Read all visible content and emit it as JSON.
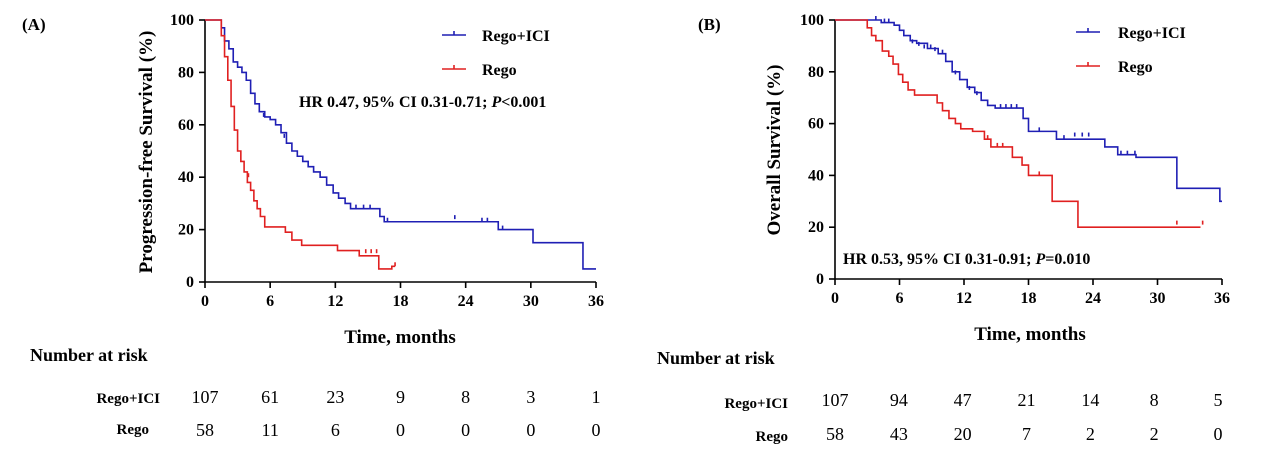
{
  "chart_data": [
    {
      "panel_label": "(A)",
      "type": "line",
      "subtype": "kaplan-meier",
      "ylabel": "Progression-free Survival (%)",
      "xlabel": "Time, months",
      "xlim": [
        0,
        36
      ],
      "ylim": [
        0,
        100
      ],
      "x_ticks": [
        "0",
        "6",
        "12",
        "18",
        "24",
        "30",
        "36"
      ],
      "y_ticks": [
        "0",
        "20",
        "40",
        "60",
        "80",
        "100"
      ],
      "annotation": {
        "prefix": "HR 0.47, 95%  CI 0.31-0.71; ",
        "p_label": "P",
        "p_value": "<0.001"
      },
      "legend": [
        "Rego+ICI",
        "Rego"
      ],
      "colors": {
        "Rego+ICI": "#1f1fb4",
        "Rego": "#e02020"
      },
      "series": [
        {
          "name": "Rego+ICI",
          "steps": [
            [
              0,
              100
            ],
            [
              1.3,
              100
            ],
            [
              1.5,
              97
            ],
            [
              1.8,
              92
            ],
            [
              2.2,
              89
            ],
            [
              2.6,
              84
            ],
            [
              3.0,
              82
            ],
            [
              3.4,
              80
            ],
            [
              3.8,
              77
            ],
            [
              4.2,
              72
            ],
            [
              4.6,
              68
            ],
            [
              5.0,
              65
            ],
            [
              5.5,
              63
            ],
            [
              6.0,
              62
            ],
            [
              6.5,
              60
            ],
            [
              7.0,
              57
            ],
            [
              7.5,
              53
            ],
            [
              8.0,
              50
            ],
            [
              8.5,
              48
            ],
            [
              9.0,
              46
            ],
            [
              9.5,
              44
            ],
            [
              10.0,
              42
            ],
            [
              10.6,
              40
            ],
            [
              11.2,
              37
            ],
            [
              11.8,
              34
            ],
            [
              12.3,
              32
            ],
            [
              12.9,
              30
            ],
            [
              13.4,
              28
            ],
            [
              15.5,
              28
            ],
            [
              16.1,
              25
            ],
            [
              16.5,
              23
            ],
            [
              26.5,
              23
            ],
            [
              27.0,
              20
            ],
            [
              28.0,
              20
            ],
            [
              30.2,
              15
            ],
            [
              34.4,
              15
            ],
            [
              34.8,
              5
            ],
            [
              36.0,
              5
            ]
          ],
          "censored": [
            [
              5.4,
              63
            ],
            [
              7.3,
              55
            ],
            [
              13.9,
              28
            ],
            [
              14.6,
              28
            ],
            [
              15.2,
              28
            ],
            [
              16.8,
              23
            ],
            [
              23.0,
              24
            ],
            [
              25.5,
              23
            ],
            [
              26.0,
              23
            ],
            [
              27.4,
              20
            ]
          ]
        },
        {
          "name": "Rego",
          "steps": [
            [
              0,
              100
            ],
            [
              1.2,
              100
            ],
            [
              1.5,
              94
            ],
            [
              1.8,
              86
            ],
            [
              2.1,
              77
            ],
            [
              2.4,
              67
            ],
            [
              2.7,
              58
            ],
            [
              3.0,
              50
            ],
            [
              3.3,
              46
            ],
            [
              3.6,
              42
            ],
            [
              3.9,
              38
            ],
            [
              4.2,
              35
            ],
            [
              4.5,
              31
            ],
            [
              4.8,
              28
            ],
            [
              5.1,
              25
            ],
            [
              5.5,
              21
            ],
            [
              7.4,
              19
            ],
            [
              8.0,
              16
            ],
            [
              8.9,
              14
            ],
            [
              12.2,
              12
            ],
            [
              14.2,
              10
            ],
            [
              16.0,
              5
            ],
            [
              17.0,
              5
            ],
            [
              17.2,
              6
            ],
            [
              17.5,
              6
            ]
          ],
          "censored": [
            [
              4.0,
              40
            ],
            [
              14.8,
              11
            ],
            [
              15.3,
              11
            ],
            [
              15.8,
              11
            ],
            [
              17.5,
              6
            ]
          ]
        }
      ]
    },
    {
      "panel_label": "(B)",
      "type": "line",
      "subtype": "kaplan-meier",
      "ylabel": "Overall Survival (%)",
      "xlabel": "Time, months",
      "xlim": [
        0,
        36
      ],
      "ylim": [
        0,
        100
      ],
      "x_ticks": [
        "0",
        "6",
        "12",
        "18",
        "24",
        "30",
        "36"
      ],
      "y_ticks": [
        "0",
        "20",
        "40",
        "60",
        "80",
        "100"
      ],
      "annotation": {
        "prefix": "HR 0.53, 95%  CI 0.31-0.91; ",
        "p_label": "P",
        "p_value": "=0.010"
      },
      "legend": [
        "Rego+ICI",
        "Rego"
      ],
      "colors": {
        "Rego+ICI": "#1f1fb4",
        "Rego": "#e02020"
      },
      "series": [
        {
          "name": "Rego+ICI",
          "steps": [
            [
              0,
              100
            ],
            [
              4.0,
              100
            ],
            [
              4.3,
              99
            ],
            [
              5.5,
              98
            ],
            [
              6.0,
              96
            ],
            [
              6.4,
              94
            ],
            [
              7.0,
              92
            ],
            [
              7.6,
              91
            ],
            [
              8.6,
              89
            ],
            [
              9.6,
              87
            ],
            [
              10.3,
              84
            ],
            [
              10.9,
              80
            ],
            [
              11.6,
              77
            ],
            [
              12.3,
              74
            ],
            [
              13.0,
              72
            ],
            [
              13.6,
              69
            ],
            [
              14.2,
              67
            ],
            [
              14.9,
              66
            ],
            [
              17.5,
              62
            ],
            [
              18.0,
              57
            ],
            [
              20.0,
              57
            ],
            [
              20.6,
              54
            ],
            [
              23.5,
              54
            ],
            [
              25.1,
              51
            ],
            [
              26.3,
              48
            ],
            [
              28.0,
              47
            ],
            [
              31.0,
              47
            ],
            [
              31.8,
              35
            ],
            [
              35.8,
              35
            ],
            [
              35.8,
              30
            ],
            [
              36.0,
              30
            ]
          ],
          "censored": [
            [
              3.8,
              100
            ],
            [
              4.6,
              99
            ],
            [
              5.0,
              99
            ],
            [
              7.2,
              91
            ],
            [
              7.8,
              90
            ],
            [
              8.3,
              89
            ],
            [
              8.9,
              89
            ],
            [
              9.3,
              88
            ],
            [
              10.0,
              87
            ],
            [
              11.2,
              79
            ],
            [
              12.5,
              73
            ],
            [
              13.2,
              71
            ],
            [
              15.4,
              66
            ],
            [
              15.9,
              66
            ],
            [
              16.4,
              66
            ],
            [
              16.9,
              66
            ],
            [
              19.0,
              57
            ],
            [
              21.3,
              54
            ],
            [
              22.3,
              55
            ],
            [
              23.0,
              55
            ],
            [
              23.6,
              55
            ],
            [
              26.6,
              48
            ],
            [
              27.2,
              48
            ],
            [
              27.9,
              48
            ]
          ]
        },
        {
          "name": "Rego",
          "steps": [
            [
              0,
              100
            ],
            [
              2.6,
              100
            ],
            [
              3.0,
              97
            ],
            [
              3.4,
              94
            ],
            [
              3.8,
              92
            ],
            [
              4.4,
              88
            ],
            [
              5.0,
              86
            ],
            [
              5.4,
              83
            ],
            [
              5.9,
              79
            ],
            [
              6.3,
              76
            ],
            [
              6.8,
              73
            ],
            [
              7.4,
              71
            ],
            [
              8.5,
              71
            ],
            [
              9.5,
              68
            ],
            [
              10.0,
              65
            ],
            [
              10.6,
              62
            ],
            [
              11.2,
              60
            ],
            [
              11.7,
              58
            ],
            [
              12.4,
              58
            ],
            [
              12.8,
              57
            ],
            [
              13.9,
              54
            ],
            [
              14.5,
              51
            ],
            [
              16.1,
              51
            ],
            [
              16.5,
              47
            ],
            [
              17.4,
              44
            ],
            [
              18.0,
              40
            ],
            [
              19.6,
              40
            ],
            [
              20.2,
              30
            ],
            [
              21.6,
              30
            ],
            [
              22.6,
              20
            ],
            [
              34.0,
              20
            ]
          ],
          "censored": [
            [
              14.2,
              54
            ],
            [
              15.1,
              51
            ],
            [
              15.6,
              51
            ],
            [
              19.0,
              40
            ],
            [
              31.8,
              21
            ],
            [
              34.2,
              21
            ]
          ]
        }
      ]
    }
  ],
  "risk_tables": [
    {
      "title": "Number at risk",
      "rows": [
        {
          "label": "Rego+ICI",
          "values": [
            "107",
            "61",
            "23",
            "9",
            "8",
            "3",
            "1"
          ]
        },
        {
          "label": "Rego",
          "values": [
            "58",
            "11",
            "6",
            "0",
            "0",
            "0",
            "0"
          ]
        }
      ]
    },
    {
      "title": "Number at risk",
      "rows": [
        {
          "label": "Rego+ICI",
          "values": [
            "107",
            "94",
            "47",
            "21",
            "14",
            "8",
            "5"
          ]
        },
        {
          "label": "Rego",
          "values": [
            "58",
            "43",
            "20",
            "7",
            "2",
            "2",
            "0"
          ]
        }
      ]
    }
  ]
}
